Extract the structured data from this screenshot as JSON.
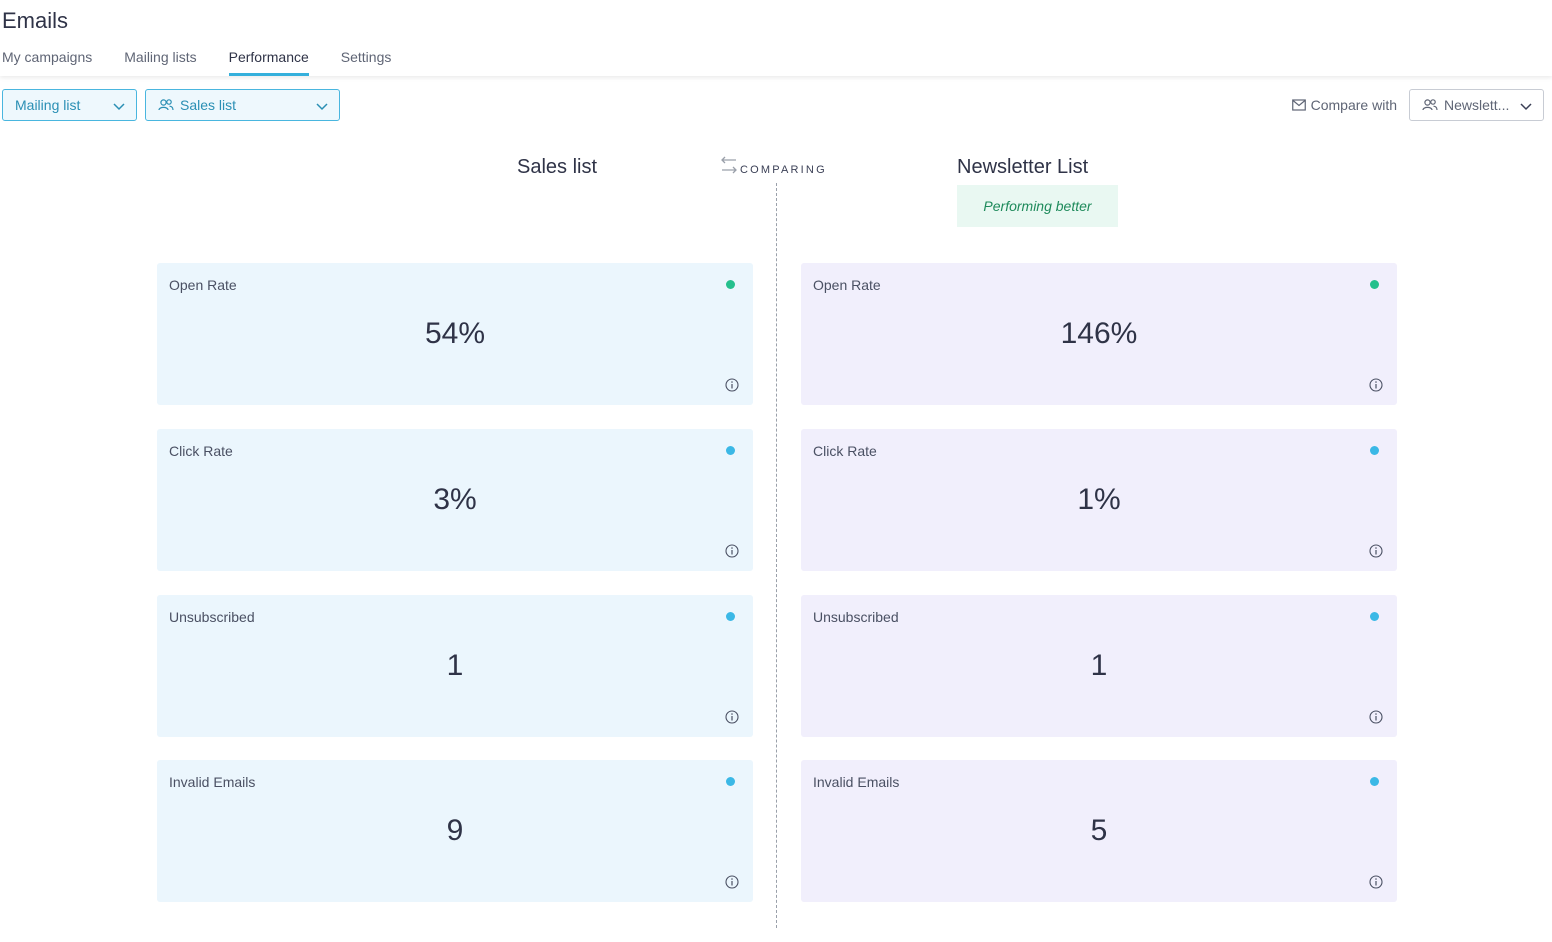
{
  "header": {
    "title": "Emails",
    "tabs": [
      {
        "label": "My campaigns"
      },
      {
        "label": "Mailing lists"
      },
      {
        "label": "Performance",
        "active": true
      },
      {
        "label": "Settings"
      }
    ]
  },
  "toolbar": {
    "type_select": "Mailing list",
    "list_select": "Sales list",
    "compare_label": "Compare with",
    "compare_select": "Newslett..."
  },
  "comparison": {
    "left_title": "Sales list",
    "right_title": "Newsletter List",
    "center_label": "COMPARING",
    "badge": "Performing better"
  },
  "colors": {
    "accent": "#35b0dc",
    "dot_green": "#25c08d",
    "dot_blue": "#3bb8e6",
    "left_card_bg": "#ebf6fd",
    "right_card_bg": "#f1effc",
    "badge_bg": "#e9f8f2"
  },
  "left_metrics": [
    {
      "label": "Open Rate",
      "value": "54%",
      "dot": "green"
    },
    {
      "label": "Click Rate",
      "value": "3%",
      "dot": "blue"
    },
    {
      "label": "Unsubscribed",
      "value": "1",
      "dot": "blue"
    },
    {
      "label": "Invalid Emails",
      "value": "9",
      "dot": "blue"
    }
  ],
  "right_metrics": [
    {
      "label": "Open Rate",
      "value": "146%",
      "dot": "green"
    },
    {
      "label": "Click Rate",
      "value": "1%",
      "dot": "blue"
    },
    {
      "label": "Unsubscribed",
      "value": "1",
      "dot": "blue"
    },
    {
      "label": "Invalid Emails",
      "value": "5",
      "dot": "blue"
    }
  ]
}
